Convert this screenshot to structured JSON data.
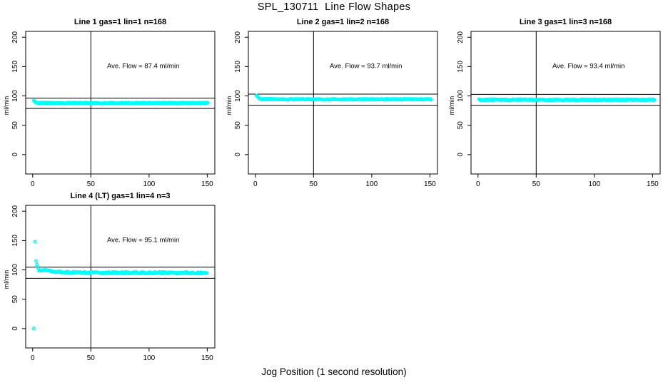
{
  "title": "SPL_130711  Line Flow Shapes",
  "xlabel": "Jog Position (1 second resolution)",
  "colors": {
    "background": "#ffffff",
    "axis": "#000000",
    "points": "#00FFFF"
  },
  "chart_data": [
    {
      "type": "scatter",
      "title": "Line 1 gas=1 lin=1 n=168",
      "annotation": "Ave. Flow =  87.4  ml/min",
      "avg_flow_ml_min": 87.4,
      "ylabel": "ml/min",
      "xlim": [
        -6,
        156.5
      ],
      "ylim": [
        -33,
        210
      ],
      "x_ticks": [
        0,
        50,
        100,
        150
      ],
      "y_ticks": [
        0,
        50,
        100,
        150,
        200
      ],
      "grid": false,
      "legend": false,
      "vline_x": 50,
      "ref_line_upper": 96.1,
      "ref_line_lower": 78.7,
      "annotation_pos": [
        95,
        151
      ],
      "transient_points": [
        [
          1,
          92
        ],
        [
          1.4,
          91.2
        ],
        [
          1.8,
          90.4
        ],
        [
          2.2,
          89.7
        ],
        [
          2.6,
          89.2
        ],
        [
          3,
          88.8
        ]
      ],
      "steady_band": {
        "x_from": 3,
        "x_to": 150.5,
        "step": 0.5,
        "y_start": 88.8,
        "y_end": 87.8,
        "tau": 3,
        "noise_amp": 0.9
      }
    },
    {
      "type": "scatter",
      "title": "Line 2 gas=1 lin=2 n=168",
      "annotation": "Ave. Flow =  93.7  ml/min",
      "avg_flow_ml_min": 93.7,
      "ylabel": "ml/min",
      "xlim": [
        -6,
        156.5
      ],
      "ylim": [
        -33,
        210
      ],
      "x_ticks": [
        0,
        50,
        100,
        150
      ],
      "y_ticks": [
        0,
        50,
        100,
        150,
        200
      ],
      "grid": false,
      "legend": false,
      "vline_x": 50,
      "ref_line_upper": 103.1,
      "ref_line_lower": 84.3,
      "annotation_pos": [
        95,
        151
      ],
      "transient_points": [
        [
          1,
          100.8
        ],
        [
          1.4,
          100.3
        ],
        [
          1.8,
          99.4
        ],
        [
          2.2,
          98.4
        ],
        [
          2.6,
          97.4
        ],
        [
          3,
          96.5
        ],
        [
          3.4,
          95.8
        ],
        [
          3.8,
          95.2
        ],
        [
          4.2,
          94.8
        ]
      ],
      "steady_band": {
        "x_from": 4.5,
        "x_to": 151,
        "step": 0.5,
        "y_start": 94.7,
        "y_end": 94.2,
        "tau": 4,
        "noise_amp": 0.8
      }
    },
    {
      "type": "scatter",
      "title": "Line 3 gas=1 lin=3 n=168",
      "annotation": "Ave. Flow =  93.4  ml/min",
      "avg_flow_ml_min": 93.4,
      "ylabel": "ml/min",
      "xlim": [
        -6,
        156.5
      ],
      "ylim": [
        -33,
        210
      ],
      "x_ticks": [
        0,
        50,
        100,
        150
      ],
      "y_ticks": [
        0,
        50,
        100,
        150,
        200
      ],
      "grid": false,
      "legend": false,
      "vline_x": 50,
      "ref_line_upper": 102.7,
      "ref_line_lower": 84.1,
      "annotation_pos": [
        95,
        151
      ],
      "transient_points": [],
      "steady_band": {
        "x_from": 1,
        "x_to": 151.5,
        "step": 0.5,
        "y_start": 93.5,
        "y_end": 93.4,
        "tau": 5,
        "noise_amp": 1.0
      }
    },
    {
      "type": "scatter",
      "title": "Line 4 (LT) gas=1 lin=4 n=3",
      "annotation": "Ave. Flow =  95.1  ml/min",
      "avg_flow_ml_min": 95.1,
      "ylabel": "ml/min",
      "xlim": [
        -6,
        156.5
      ],
      "ylim": [
        -33,
        210
      ],
      "x_ticks": [
        0,
        50,
        100,
        150
      ],
      "y_ticks": [
        0,
        50,
        100,
        150,
        200
      ],
      "grid": false,
      "legend": false,
      "vline_x": 50,
      "ref_line_upper": 104.6,
      "ref_line_lower": 85.6,
      "annotation_pos": [
        95,
        151
      ],
      "transient_points": [
        [
          1,
          0
        ],
        [
          2,
          148
        ],
        [
          3,
          115
        ],
        [
          3.7,
          109
        ],
        [
          4.3,
          105
        ],
        [
          5,
          102
        ]
      ],
      "steady_band": {
        "x_from": 5.5,
        "x_to": 150,
        "step": 0.75,
        "y_start": 100,
        "y_end": 95,
        "tau": 14,
        "noise_amp": 1.5
      }
    }
  ]
}
